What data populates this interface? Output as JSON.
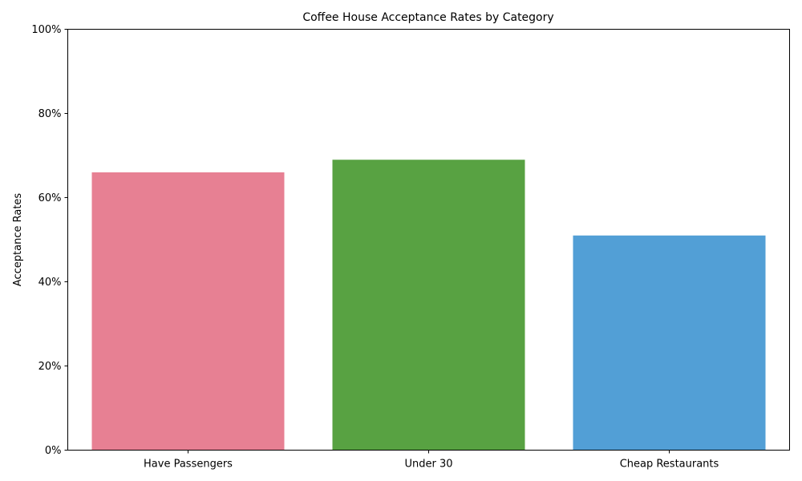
{
  "chart_data": {
    "type": "bar",
    "title": "Coffee House Acceptance Rates by Category",
    "xlabel": "",
    "ylabel": "Acceptance Rates",
    "categories": [
      "Have Passengers",
      "Under 30",
      "Cheap Restaurants"
    ],
    "values": [
      0.66,
      0.69,
      0.51
    ],
    "colors": [
      "#e78093",
      "#58a242",
      "#529fd6"
    ],
    "ylim": [
      0,
      1.0
    ],
    "yticks": [
      0,
      0.2,
      0.4,
      0.6,
      0.8,
      1.0
    ],
    "ytick_labels": [
      "0%",
      "20%",
      "40%",
      "60%",
      "80%",
      "100%"
    ],
    "grid": false,
    "legend": "none"
  }
}
